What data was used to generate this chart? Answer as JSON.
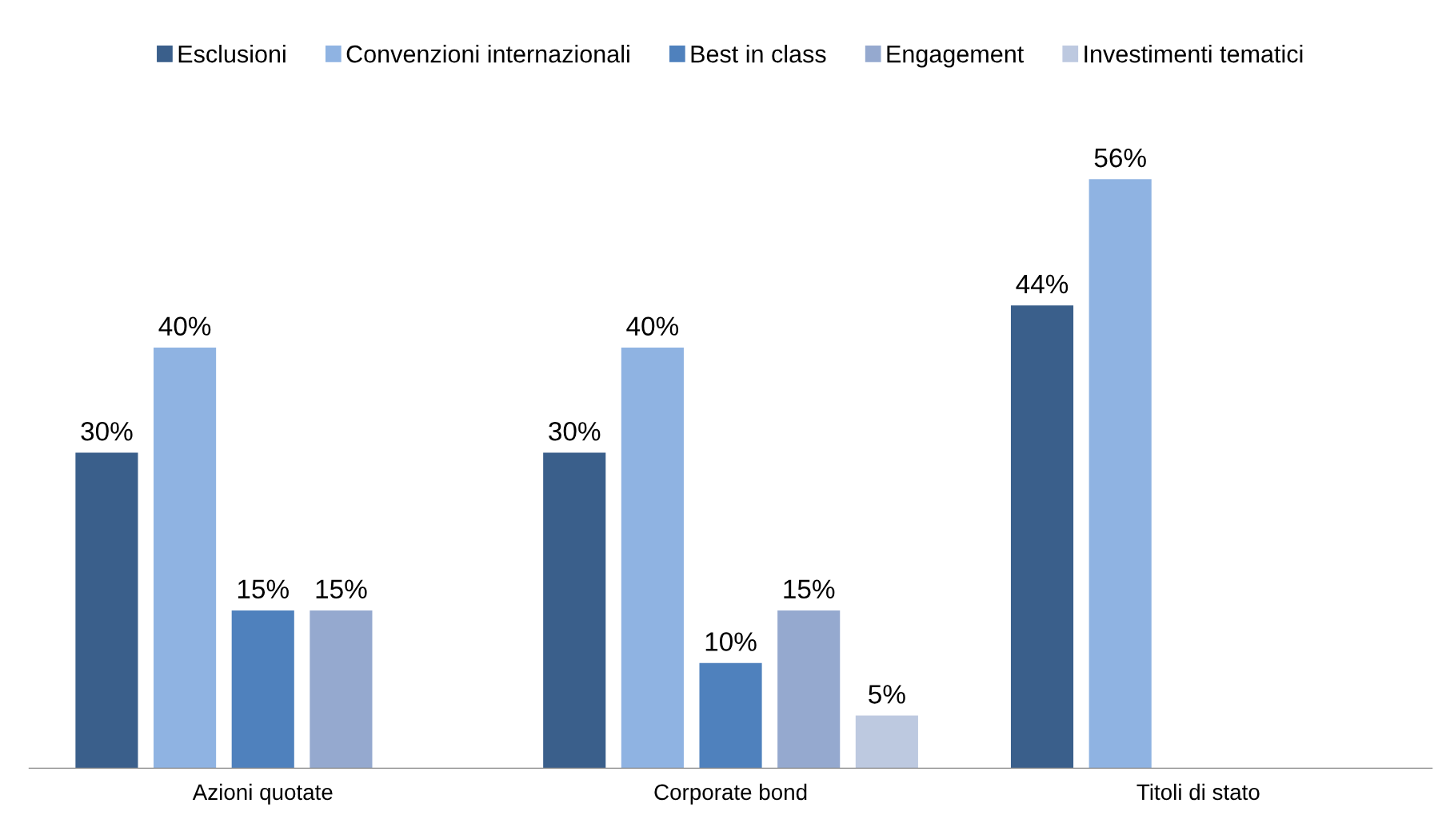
{
  "chart_data": {
    "type": "bar",
    "categories": [
      "Azioni quotate",
      "Corporate bond",
      "Titoli di stato"
    ],
    "series": [
      {
        "name": "Esclusioni",
        "color": "#3a5f8b",
        "values": [
          30,
          30,
          44
        ],
        "value_labels": [
          "30%",
          "30%",
          "44%"
        ]
      },
      {
        "name": "Convenzioni internazionali",
        "color": "#8fb3e2",
        "values": [
          40,
          40,
          56
        ],
        "value_labels": [
          "40%",
          "40%",
          "56%"
        ]
      },
      {
        "name": "Best in class",
        "color": "#4f81bd",
        "values": [
          15,
          10,
          null
        ],
        "value_labels": [
          "15%",
          "10%",
          null
        ]
      },
      {
        "name": "Engagement",
        "color": "#95a9cf",
        "values": [
          15,
          15,
          null
        ],
        "value_labels": [
          "15%",
          "15%",
          null
        ]
      },
      {
        "name": "Investimenti tematici",
        "color": "#bdc9e0",
        "values": [
          null,
          5,
          null
        ],
        "value_labels": [
          null,
          "5%",
          null
        ]
      }
    ],
    "legend": "top",
    "grid": false,
    "tick_labels": "x"
  }
}
